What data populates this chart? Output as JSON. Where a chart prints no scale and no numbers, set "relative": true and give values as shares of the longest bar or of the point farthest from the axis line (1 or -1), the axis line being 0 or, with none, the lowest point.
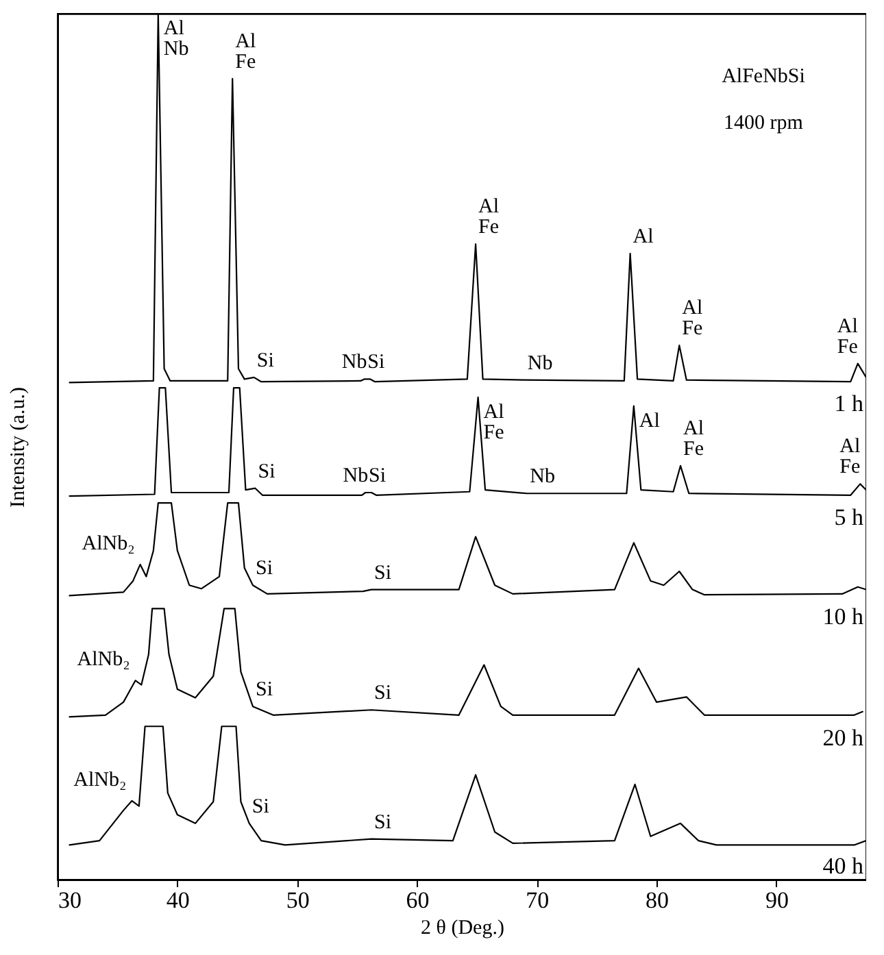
{
  "chart_data": {
    "type": "line",
    "title": "AlFeNbSi",
    "subtitle": "1400 rpm",
    "xlabel": "2 θ (Deg.)",
    "ylabel": "Intensity (a.u.)",
    "relative": true,
    "xlim": [
      30,
      97.5
    ],
    "xticks": [
      30,
      40,
      50,
      60,
      70,
      80,
      90
    ],
    "legend": false,
    "grid": false,
    "series": [
      {
        "name": "1 h",
        "color": "#000000",
        "x": [
          31,
          38.0,
          38.4,
          38.9,
          39.4,
          44.2,
          44.6,
          45.1,
          45.6,
          46.4,
          47,
          55.3,
          55.6,
          56.1,
          56.5,
          64.2,
          64.9,
          65.5,
          69,
          77.3,
          77.8,
          78.4,
          81.4,
          81.9,
          82.5,
          96.2,
          96.8,
          97.5
        ],
        "values": [
          0.574,
          0.576,
          1.0,
          0.59,
          0.576,
          0.576,
          0.925,
          0.59,
          0.578,
          0.58,
          0.575,
          0.576,
          0.578,
          0.578,
          0.575,
          0.578,
          0.734,
          0.578,
          0.577,
          0.576,
          0.723,
          0.578,
          0.576,
          0.617,
          0.577,
          0.575,
          0.596,
          0.58
        ]
      },
      {
        "name": "5 h",
        "color": "#000000",
        "x": [
          31,
          38.1,
          38.5,
          39.0,
          39.5,
          44.3,
          44.7,
          45.2,
          45.7,
          46.5,
          47.1,
          55.4,
          55.7,
          56.2,
          56.6,
          64.4,
          65.1,
          65.7,
          69.2,
          77.5,
          78.1,
          78.7,
          81.4,
          82.0,
          82.7,
          96.2,
          97.0,
          97.5
        ],
        "values": [
          0.443,
          0.445,
          0.568,
          0.568,
          0.447,
          0.447,
          0.568,
          0.568,
          0.45,
          0.452,
          0.444,
          0.444,
          0.447,
          0.447,
          0.444,
          0.448,
          0.557,
          0.45,
          0.446,
          0.446,
          0.547,
          0.45,
          0.448,
          0.478,
          0.446,
          0.444,
          0.457,
          0.45
        ]
      },
      {
        "name": "10 h",
        "color": "#000000",
        "x": [
          31,
          35.5,
          36.3,
          36.9,
          37.4,
          38.0,
          38.4,
          39.5,
          40.0,
          41,
          42,
          43.5,
          44.2,
          45.1,
          45.6,
          46.3,
          47.5,
          55.5,
          56.2,
          63.5,
          64.9,
          66.5,
          68,
          76.5,
          78.1,
          79.5,
          80.6,
          81.9,
          83,
          84,
          95.5,
          96.8,
          97.5
        ],
        "values": [
          0.328,
          0.332,
          0.345,
          0.364,
          0.35,
          0.38,
          0.435,
          0.435,
          0.38,
          0.34,
          0.336,
          0.35,
          0.435,
          0.435,
          0.36,
          0.34,
          0.33,
          0.333,
          0.335,
          0.335,
          0.396,
          0.34,
          0.33,
          0.335,
          0.389,
          0.345,
          0.34,
          0.356,
          0.335,
          0.329,
          0.33,
          0.338,
          0.335
        ]
      },
      {
        "name": "20 h",
        "color": "#000000",
        "x": [
          31,
          34,
          35.5,
          36.5,
          37.0,
          37.6,
          37.9,
          38.9,
          39.3,
          40,
          41.5,
          43,
          43.9,
          44.8,
          45.3,
          46.3,
          48,
          56.2,
          63.5,
          65.6,
          67,
          68,
          76.5,
          78.5,
          80,
          82.5,
          84,
          96.5,
          97.2
        ],
        "values": [
          0.188,
          0.19,
          0.205,
          0.23,
          0.225,
          0.26,
          0.313,
          0.313,
          0.26,
          0.22,
          0.21,
          0.235,
          0.313,
          0.313,
          0.24,
          0.2,
          0.19,
          0.196,
          0.19,
          0.248,
          0.2,
          0.19,
          0.19,
          0.244,
          0.205,
          0.211,
          0.19,
          0.19,
          0.194
        ]
      },
      {
        "name": "40 h",
        "color": "#000000",
        "x": [
          31,
          33.5,
          35.5,
          36.2,
          36.8,
          37.3,
          38.8,
          39.2,
          40,
          41.5,
          43,
          43.7,
          44.9,
          45.3,
          46,
          47,
          49,
          56.2,
          63,
          64.9,
          66.5,
          68,
          76.5,
          78.2,
          79.5,
          82,
          83.5,
          85,
          96.5,
          97.5
        ],
        "values": [
          0.04,
          0.045,
          0.08,
          0.091,
          0.085,
          0.177,
          0.177,
          0.1,
          0.075,
          0.065,
          0.09,
          0.177,
          0.177,
          0.09,
          0.065,
          0.045,
          0.04,
          0.047,
          0.045,
          0.121,
          0.055,
          0.042,
          0.045,
          0.11,
          0.05,
          0.065,
          0.045,
          0.04,
          0.04,
          0.045
        ]
      }
    ],
    "annotations": [
      {
        "text": "Al\nNb",
        "x": 38.4,
        "y": 1.0
      },
      {
        "text": "Al\nFe",
        "x": 44.6,
        "y": 0.925
      },
      {
        "text": "Si",
        "x": 46.4,
        "y": 0.58
      },
      {
        "text": "Nb",
        "x": 55.6,
        "y": 0.578
      },
      {
        "text": "Si",
        "x": 56.1,
        "y": 0.578
      },
      {
        "text": "Al\nFe",
        "x": 64.9,
        "y": 0.734
      },
      {
        "text": "Nb",
        "x": 69,
        "y": 0.577
      },
      {
        "text": "Al",
        "x": 77.8,
        "y": 0.723
      },
      {
        "text": "Al\nFe",
        "x": 81.9,
        "y": 0.617
      },
      {
        "text": "Al\nFe",
        "x": 96.8,
        "y": 0.596
      },
      {
        "text": "Al\nFe",
        "x": 65.1,
        "y": 0.557
      },
      {
        "text": "Al",
        "x": 78.1,
        "y": 0.547
      },
      {
        "text": "Al\nFe",
        "x": 82.0,
        "y": 0.478
      },
      {
        "text": "Si",
        "x": 46.5,
        "y": 0.452
      },
      {
        "text": "Nb",
        "x": 55.7,
        "y": 0.447
      },
      {
        "text": "Si",
        "x": 56.2,
        "y": 0.447
      },
      {
        "text": "Nb",
        "x": 69.2,
        "y": 0.446
      },
      {
        "text": "Al\nFe",
        "x": 97.0,
        "y": 0.457
      },
      {
        "text": "AlNb₂",
        "x": 36.9,
        "y": 0.364
      },
      {
        "text": "Si",
        "x": 46.3,
        "y": 0.34
      },
      {
        "text": "Si",
        "x": 56.2,
        "y": 0.335
      },
      {
        "text": "AlNb₂",
        "x": 36.5,
        "y": 0.23
      },
      {
        "text": "Si",
        "x": 46.3,
        "y": 0.2
      },
      {
        "text": "Si",
        "x": 56.2,
        "y": 0.196
      },
      {
        "text": "AlNb₂",
        "x": 36.2,
        "y": 0.091
      },
      {
        "text": "Si",
        "x": 46,
        "y": 0.065
      },
      {
        "text": "Si",
        "x": 56.2,
        "y": 0.047
      }
    ]
  }
}
